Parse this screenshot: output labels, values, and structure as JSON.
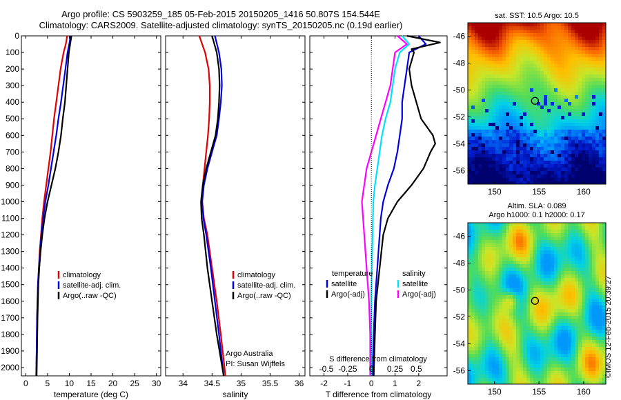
{
  "title": {
    "line1": "Argo profile: CS 5903259_185 05-Feb-2015 20150205_1416 50.807S 154.544E",
    "line2": "Climatology: CARS2009. Satellite-adjusted climatology: synTS_20150205.nc (0.19d earlier)"
  },
  "colors": {
    "climatology": "#e00000",
    "satellite": "#0000e0",
    "argo": "#000000",
    "s_satellite": "#00e0ff",
    "s_argo": "#ff00ff"
  },
  "chart_data": [
    {
      "type": "line",
      "id": "temperature",
      "xlabel": "temperature (deg C)",
      "ylabel": "",
      "xlim": [
        -1,
        31
      ],
      "ylim": [
        2050,
        0
      ],
      "xticks": [
        0,
        5,
        10,
        15,
        20,
        25,
        30
      ],
      "yticks": [
        0,
        100,
        200,
        300,
        400,
        500,
        600,
        700,
        800,
        900,
        1000,
        1100,
        1200,
        1300,
        1400,
        1500,
        1600,
        1700,
        1800,
        1900,
        2000
      ],
      "legend": {
        "position": "lower-right",
        "entries": [
          "climatology",
          "satellite-adj. clim.",
          "Argo(..raw -QC)"
        ]
      },
      "series": [
        {
          "name": "climatology",
          "color": "#e00000",
          "depth": [
            0,
            50,
            100,
            200,
            300,
            400,
            500,
            600,
            700,
            800,
            900,
            1000,
            1100,
            1200,
            1300,
            1400,
            1500,
            1700,
            1900,
            2050
          ],
          "values": [
            9.5,
            9.2,
            8.7,
            8.0,
            7.5,
            7.0,
            6.5,
            6.1,
            5.7,
            5.2,
            4.7,
            4.2,
            3.8,
            3.5,
            3.2,
            3.0,
            2.8,
            2.6,
            2.5,
            2.4
          ]
        },
        {
          "name": "satellite-adj. clim.",
          "color": "#0000e0",
          "depth": [
            0,
            50,
            100,
            200,
            300,
            400,
            500,
            600,
            700,
            800,
            900,
            1000,
            1100,
            1200,
            1300,
            1400,
            1500,
            1700,
            1900,
            2050
          ],
          "values": [
            10.3,
            10.0,
            9.6,
            9.1,
            8.6,
            8.1,
            7.5,
            7.0,
            6.4,
            5.8,
            5.2,
            4.5,
            4.0,
            3.6,
            3.3,
            3.0,
            2.8,
            2.6,
            2.5,
            2.4
          ]
        },
        {
          "name": "Argo(..raw -QC)",
          "color": "#000000",
          "depth": [
            0,
            50,
            100,
            200,
            300,
            400,
            500,
            600,
            700,
            800,
            900,
            1000,
            1100,
            1200,
            1300,
            1400,
            1500,
            1700,
            1900,
            2050
          ],
          "values": [
            10.5,
            10.2,
            9.9,
            9.6,
            9.3,
            9.0,
            8.5,
            8.1,
            7.5,
            6.8,
            5.9,
            5.0,
            4.3,
            3.8,
            3.4,
            3.1,
            2.9,
            2.7,
            2.6,
            2.5
          ]
        }
      ]
    },
    {
      "type": "line",
      "id": "salinity",
      "xlabel": "salinity",
      "xlim": [
        33.7,
        36.1
      ],
      "ylim": [
        2050,
        0
      ],
      "xticks": [
        34,
        34.5,
        35,
        35.5,
        36
      ],
      "legend": {
        "position": "lower-right",
        "entries": [
          "climatology",
          "satellite-adj. clim.",
          "Argo(..raw -QC)"
        ]
      },
      "annotation": [
        "Argo Australia",
        "PI: Susan Wijffels"
      ],
      "series": [
        {
          "name": "climatology",
          "color": "#e00000",
          "depth": [
            0,
            100,
            200,
            300,
            400,
            500,
            600,
            700,
            800,
            900,
            1000,
            1100,
            1200,
            1400,
            1600,
            1800,
            2050
          ],
          "values": [
            34.28,
            34.38,
            34.44,
            34.46,
            34.46,
            34.45,
            34.43,
            34.4,
            34.37,
            34.34,
            34.33,
            34.36,
            34.42,
            34.5,
            34.58,
            34.65,
            34.73
          ]
        },
        {
          "name": "satellite-adj. clim.",
          "color": "#0000e0",
          "depth": [
            0,
            100,
            200,
            300,
            400,
            500,
            600,
            700,
            800,
            900,
            1000,
            1100,
            1200,
            1400,
            1600,
            1800,
            2050
          ],
          "values": [
            34.55,
            34.62,
            34.66,
            34.67,
            34.65,
            34.62,
            34.58,
            34.5,
            34.42,
            34.36,
            34.33,
            34.35,
            34.4,
            34.48,
            34.55,
            34.62,
            34.7
          ]
        },
        {
          "name": "Argo(..raw -QC)",
          "color": "#000000",
          "depth": [
            0,
            100,
            200,
            300,
            400,
            500,
            600,
            700,
            800,
            900,
            1000,
            1100,
            1200,
            1400,
            1600,
            1800,
            2050
          ],
          "values": [
            34.5,
            34.58,
            34.62,
            34.63,
            34.62,
            34.6,
            34.56,
            34.48,
            34.4,
            34.34,
            34.31,
            34.32,
            34.36,
            34.42,
            34.5,
            34.58,
            34.7
          ]
        }
      ]
    },
    {
      "type": "line",
      "id": "difference",
      "xlabel": "T difference from climatology",
      "xlabel_top": "S difference from climatology",
      "xlim": [
        -2.6,
        3.2
      ],
      "ylim": [
        2050,
        0
      ],
      "xticks": [
        -2,
        -1,
        0,
        1,
        2
      ],
      "s_ticks": [
        -0.5,
        -0.25,
        0,
        0.25,
        0.5
      ],
      "s_tick_positions": [
        -1.9,
        -1.0,
        0,
        1.0,
        1.9
      ],
      "legend": {
        "position": "lower",
        "headers": [
          "temperature",
          "salinity"
        ],
        "entries": [
          "satellite",
          "Argo(-adj)",
          "satellite",
          "Argo(-adj)"
        ]
      },
      "series": [
        {
          "name": "satellite",
          "quantity": "temperature",
          "color": "#0000e0",
          "depth": [
            0,
            50,
            100,
            200,
            300,
            400,
            500,
            600,
            700,
            800,
            900,
            1000,
            1100,
            1200,
            1400,
            1600,
            1800,
            2050
          ],
          "values": [
            2.0,
            2.3,
            1.6,
            1.5,
            1.4,
            1.3,
            1.3,
            1.2,
            1.1,
            0.95,
            0.7,
            0.5,
            0.4,
            0.35,
            0.25,
            0.15,
            0.1,
            0.05
          ]
        },
        {
          "name": "Argo(-adj)",
          "quantity": "temperature",
          "color": "#000000",
          "depth": [
            0,
            40,
            80,
            100,
            200,
            300,
            400,
            500,
            600,
            650,
            700,
            800,
            900,
            1000,
            1100,
            1200,
            1400,
            1600,
            1800,
            2050
          ],
          "values": [
            1.5,
            2.9,
            1.7,
            1.8,
            1.6,
            1.7,
            1.9,
            2.1,
            2.6,
            2.7,
            2.5,
            2.2,
            1.7,
            1.1,
            0.7,
            0.5,
            0.35,
            0.2,
            0.15,
            0.1
          ]
        },
        {
          "name": "satellite",
          "quantity": "salinity",
          "color": "#00e0ff",
          "depth": [
            0,
            50,
            100,
            200,
            300,
            400,
            500,
            600,
            700,
            800,
            900,
            1000,
            1200,
            1400,
            1600,
            1800,
            2050
          ],
          "values": [
            1.3,
            1.6,
            1.2,
            1.0,
            0.9,
            0.8,
            0.6,
            0.45,
            0.35,
            0.25,
            0.15,
            0.08,
            0.05,
            0.02,
            0.0,
            0.0,
            0.0
          ]
        },
        {
          "name": "Argo(-adj)",
          "quantity": "salinity",
          "color": "#ff00ff",
          "depth": [
            0,
            50,
            100,
            200,
            300,
            400,
            500,
            600,
            700,
            800,
            900,
            1000,
            1200,
            1400,
            1600,
            1800,
            2050
          ],
          "values": [
            1.1,
            1.5,
            1.0,
            0.9,
            0.8,
            0.6,
            0.4,
            0.2,
            0.0,
            -0.2,
            -0.3,
            -0.4,
            -0.3,
            -0.2,
            -0.1,
            -0.05,
            -0.05
          ]
        }
      ]
    },
    {
      "type": "heatmap",
      "id": "sst-map",
      "title": "sat. SST: 10.5  Argo: 10.5",
      "xlim": [
        147,
        162.5
      ],
      "ylim": [
        -57,
        -45
      ],
      "xticks": [
        150,
        155,
        160
      ],
      "yticks": [
        -46,
        -48,
        -50,
        -52,
        -54,
        -56
      ],
      "marker": {
        "lon": 154.544,
        "lat": -50.807
      }
    },
    {
      "type": "heatmap",
      "id": "sla-map",
      "title_lines": [
        "Altim. SLA: 0.089",
        "Argo h1000: 0.1  h2000: 0.17"
      ],
      "xlim": [
        147,
        162.5
      ],
      "ylim": [
        -57,
        -45
      ],
      "xticks": [
        150,
        155,
        160
      ],
      "yticks": [
        -46,
        -48,
        -50,
        -52,
        -54,
        -56
      ],
      "marker": {
        "lon": 154.544,
        "lat": -50.807
      }
    }
  ],
  "stamp": "©IMOS 12-Feb-2015 20:39:27"
}
